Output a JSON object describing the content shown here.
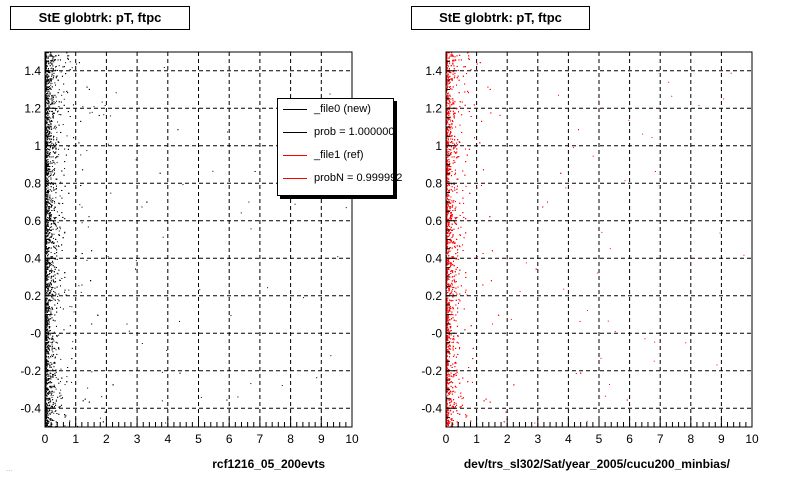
{
  "panels": [
    {
      "title": "StE globtrk: pT, ftpc",
      "xlabel": "rcf1216_05_200evts",
      "series_color": "#000000"
    },
    {
      "title": "StE globtrk: pT, ftpc",
      "xlabel": "dev/trs_sl302/Sat/year_2005/cucu200_minbias/",
      "series_color": "#ff0000"
    }
  ],
  "legend": {
    "entries": [
      {
        "label": "_file0 (new)",
        "color": "#000000"
      },
      {
        "label": "prob = 1.000000",
        "color": "#000000"
      },
      {
        "label": "_file1 (ref)",
        "color": "#ff0000"
      },
      {
        "label": "probN = 0.999992",
        "color": "#ff0000"
      }
    ]
  },
  "footer": "...",
  "chart_data": [
    {
      "type": "scatter",
      "title": "StE globtrk: pT, ftpc",
      "xlabel": "rcf1216_05_200evts",
      "ylabel": "",
      "xlim": [
        0,
        10
      ],
      "ylim": [
        -0.5,
        1.5
      ],
      "x_ticks": [
        "0",
        "1",
        "2",
        "3",
        "4",
        "5",
        "6",
        "7",
        "8",
        "9",
        "10"
      ],
      "y_ticks": [
        "-0.4",
        "-0.2",
        "-0",
        "0.2",
        "0.4",
        "0.6",
        "0.8",
        "1",
        "1.2",
        "1.4"
      ],
      "grid": true,
      "series": [
        {
          "color": "#000000",
          "density_profile": [
            [
              0.0,
              1.0
            ],
            [
              0.2,
              0.9
            ],
            [
              0.4,
              0.35
            ],
            [
              0.6,
              0.15
            ],
            [
              1.0,
              0.05
            ],
            [
              2.0,
              0.015
            ],
            [
              5.0,
              0.004
            ],
            [
              10.0,
              0.002
            ]
          ]
        }
      ]
    },
    {
      "type": "scatter",
      "title": "StE globtrk: pT, ftpc",
      "xlabel": "dev/trs_sl302/Sat/year_2005/cucu200_minbias/",
      "ylabel": "",
      "xlim": [
        0,
        10
      ],
      "ylim": [
        -0.5,
        1.5
      ],
      "x_ticks": [
        "0",
        "1",
        "2",
        "3",
        "4",
        "5",
        "6",
        "7",
        "8",
        "9",
        "10"
      ],
      "y_ticks": [
        "-0.4",
        "-0.2",
        "-0",
        "0.2",
        "0.4",
        "0.6",
        "0.8",
        "1",
        "1.2",
        "1.4"
      ],
      "grid": true,
      "series": [
        {
          "color": "#ff0000",
          "density_profile": [
            [
              0.0,
              1.0
            ],
            [
              0.2,
              0.9
            ],
            [
              0.4,
              0.35
            ],
            [
              0.6,
              0.15
            ],
            [
              1.0,
              0.05
            ],
            [
              2.0,
              0.015
            ],
            [
              5.0,
              0.004
            ],
            [
              10.0,
              0.002
            ]
          ]
        }
      ]
    }
  ]
}
